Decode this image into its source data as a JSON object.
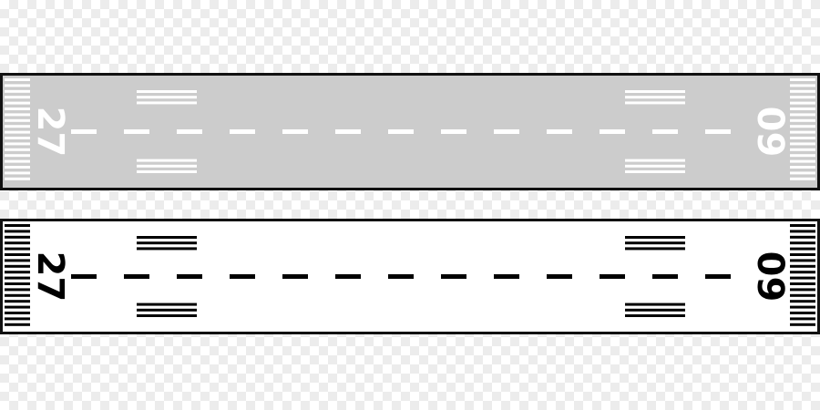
{
  "runways": [
    {
      "style": "gray-surface",
      "surface_color": "#cccccc",
      "marking_color": "#ffffff",
      "border_color": "#111111",
      "left_designator": "27",
      "right_designator": "09"
    },
    {
      "style": "white-surface",
      "surface_color": "#ffffff",
      "marking_color": "#000000",
      "border_color": "#111111",
      "left_designator": "27",
      "right_designator": "09"
    }
  ]
}
